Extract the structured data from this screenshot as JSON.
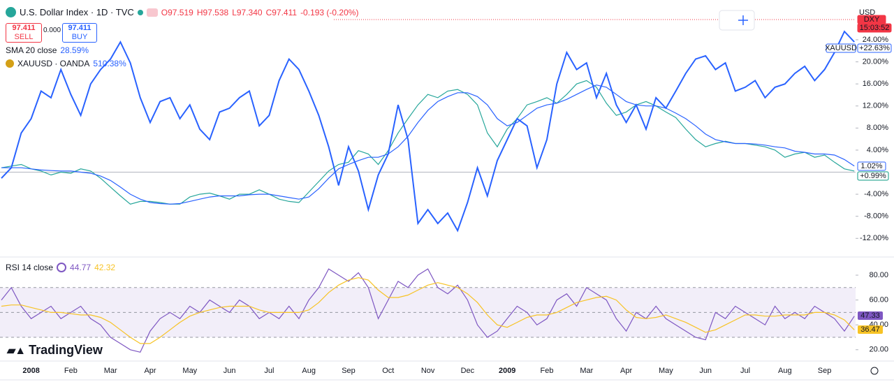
{
  "header": {
    "symbol_title": "U.S. Dollar Index · 1D · TVC",
    "ohlc": [
      "O97.519",
      "H97.538",
      "L97.340",
      "C97.411"
    ],
    "change": "-0.193 (-0.20%)",
    "sell_price": "97.411",
    "sell": "SELL",
    "spread": "0.000",
    "buy_price": "97.411",
    "buy": "BUY",
    "currency": "USD",
    "logo": "TradingView"
  },
  "chart_data": [
    {
      "type": "line",
      "title": "U.S. Dollar Index · 1D · TVC",
      "categories": [
        null,
        null,
        null,
        "2008",
        null,
        null,
        null,
        "Feb",
        null,
        null,
        null,
        "Mar",
        null,
        null,
        null,
        "Apr",
        null,
        null,
        null,
        "May",
        null,
        null,
        null,
        "Jun",
        null,
        null,
        null,
        "Jul",
        null,
        null,
        null,
        "Aug",
        null,
        null,
        null,
        "Sep",
        null,
        null,
        null,
        "Oct",
        null,
        null,
        null,
        "Nov",
        null,
        null,
        null,
        "Dec",
        null,
        null,
        null,
        "2009",
        null,
        null,
        null,
        "Feb",
        null,
        null,
        null,
        "Mar",
        null,
        null,
        null,
        "Apr",
        null,
        null,
        null,
        "May",
        null,
        null,
        null,
        "Jun",
        null,
        null,
        null,
        "Jul",
        null,
        null,
        null,
        "Aug",
        null,
        null,
        null,
        "Sep",
        null,
        null,
        null
      ],
      "series": [
        {
          "name": "DXY",
          "color": "#26a69a",
          "values": [
            0.8,
            1.1,
            1.4,
            0.6,
            0.2,
            -0.5,
            0.0,
            -0.2,
            0.6,
            0.2,
            -1.1,
            -2.7,
            -4.3,
            -5.8,
            -5.3,
            -5.3,
            -5.5,
            -5.8,
            -5.8,
            -4.5,
            -4.0,
            -3.8,
            -4.3,
            -4.9,
            -4.0,
            -4.0,
            -3.2,
            -4.0,
            -4.9,
            -5.3,
            -5.5,
            -3.6,
            -1.7,
            0.2,
            1.4,
            1.8,
            3.9,
            3.3,
            1.4,
            3.9,
            7.1,
            9.7,
            12.2,
            14.1,
            13.5,
            14.7,
            15.0,
            14.1,
            12.2,
            7.1,
            4.6,
            7.8,
            9.7,
            12.2,
            12.8,
            13.5,
            12.5,
            14.1,
            16.0,
            16.6,
            15.4,
            12.5,
            10.3,
            10.9,
            12.2,
            12.8,
            12.0,
            10.9,
            9.9,
            7.8,
            5.9,
            4.6,
            5.2,
            5.6,
            5.2,
            5.2,
            4.9,
            4.6,
            4.0,
            2.7,
            3.3,
            3.6,
            2.7,
            3.1,
            1.8,
            0.6,
            0.2
          ]
        },
        {
          "name": "XAUUSD · OANDA",
          "color": "#2962ff",
          "legend_value": "510.38%",
          "values": [
            -1.1,
            0.8,
            7.1,
            9.7,
            14.7,
            13.5,
            18.6,
            14.1,
            10.3,
            16.0,
            18.6,
            20.5,
            23.6,
            19.8,
            13.5,
            9.0,
            12.8,
            13.5,
            9.7,
            12.2,
            7.8,
            5.9,
            10.9,
            11.6,
            13.5,
            14.7,
            8.4,
            10.3,
            16.6,
            20.5,
            18.6,
            14.7,
            10.3,
            4.6,
            -2.4,
            4.6,
            0.2,
            -6.8,
            -0.5,
            3.3,
            12.2,
            5.9,
            -9.3,
            -6.8,
            -9.3,
            -7.4,
            -10.6,
            -5.5,
            0.8,
            -4.3,
            2.1,
            5.9,
            9.7,
            8.4,
            0.8,
            5.9,
            16.0,
            21.7,
            18.6,
            19.8,
            13.5,
            17.9,
            12.2,
            9.0,
            12.2,
            7.8,
            13.5,
            11.6,
            14.7,
            17.9,
            20.5,
            21.1,
            18.6,
            19.8,
            14.7,
            15.4,
            16.6,
            13.5,
            15.4,
            16.0,
            17.9,
            19.2,
            16.6,
            18.6,
            21.7,
            25.5,
            23.6
          ]
        },
        {
          "name": "SMA 20 close",
          "color": "#2962ff",
          "legend_value": "28.59%",
          "values": [
            0.8,
            0.8,
            0.8,
            0.6,
            0.4,
            0.3,
            0.2,
            0.2,
            0.0,
            -0.2,
            -0.7,
            -1.5,
            -2.7,
            -4.0,
            -4.9,
            -5.5,
            -5.7,
            -5.8,
            -5.7,
            -5.3,
            -4.9,
            -4.5,
            -4.3,
            -4.3,
            -4.3,
            -4.1,
            -4.0,
            -4.0,
            -4.3,
            -4.6,
            -4.9,
            -4.5,
            -3.0,
            -1.1,
            0.6,
            1.4,
            2.1,
            2.7,
            2.7,
            3.3,
            4.6,
            6.5,
            9.0,
            11.2,
            12.8,
            13.7,
            14.4,
            14.4,
            13.7,
            12.2,
            9.7,
            8.4,
            9.0,
            10.3,
            11.6,
            12.2,
            12.5,
            13.2,
            14.1,
            15.0,
            15.8,
            15.4,
            14.1,
            12.8,
            12.2,
            12.0,
            12.0,
            11.6,
            10.7,
            9.7,
            8.4,
            6.9,
            5.9,
            5.5,
            5.2,
            5.2,
            5.1,
            4.9,
            4.6,
            4.4,
            3.8,
            3.6,
            3.3,
            3.3,
            3.1,
            2.3,
            1.1
          ]
        }
      ],
      "ylim": [
        -15,
        30.2
      ],
      "yticks": [
        {
          "value": -12,
          "label": "-12.00%"
        },
        {
          "value": -8,
          "label": "-8.00%"
        },
        {
          "value": -4,
          "label": "-4.00%"
        },
        {
          "value": 4,
          "label": "4.00%"
        },
        {
          "value": 8,
          "label": "8.00%"
        },
        {
          "value": 12,
          "label": "12.00%"
        },
        {
          "value": 16,
          "label": "16.00%"
        },
        {
          "value": 20,
          "label": "20.00%"
        },
        {
          "value": 24,
          "label": "24.00%"
        }
      ],
      "baseline": 0,
      "grid": false,
      "tags": [
        "DXY",
        "15:03:52",
        "XAUUSD",
        "+22.63%",
        "1.02%",
        "+0.99%"
      ]
    },
    {
      "type": "line",
      "series": [
        {
          "name": "RSI 14 close",
          "color": "#7e57c2",
          "legend_value": "44.77",
          "values": [
            60,
            70,
            55,
            45,
            50,
            55,
            45,
            50,
            55,
            45,
            40,
            30,
            25,
            20,
            18,
            35,
            45,
            50,
            45,
            55,
            50,
            60,
            55,
            50,
            60,
            55,
            45,
            50,
            45,
            55,
            45,
            60,
            70,
            85,
            80,
            75,
            82,
            70,
            45,
            60,
            75,
            70,
            80,
            85,
            70,
            65,
            72,
            60,
            40,
            30,
            35,
            45,
            55,
            50,
            40,
            45,
            60,
            65,
            55,
            70,
            65,
            60,
            45,
            35,
            50,
            45,
            55,
            45,
            40,
            35,
            30,
            28,
            50,
            45,
            55,
            50,
            45,
            40,
            55,
            45,
            50,
            45,
            55,
            50,
            45,
            35,
            47
          ]
        },
        {
          "color": "#f7c325",
          "legend_value": "42.32",
          "values": [
            55,
            56,
            56,
            54,
            52,
            50,
            50,
            49,
            48,
            48,
            46,
            42,
            36,
            30,
            25,
            25,
            30,
            36,
            42,
            47,
            50,
            52,
            54,
            55,
            55,
            55,
            52,
            50,
            50,
            50,
            50,
            52,
            58,
            66,
            72,
            76,
            78,
            76,
            68,
            62,
            62,
            64,
            68,
            72,
            74,
            72,
            70,
            65,
            58,
            48,
            40,
            38,
            42,
            46,
            48,
            48,
            50,
            54,
            58,
            60,
            62,
            63,
            60,
            52,
            46,
            45,
            46,
            48,
            45,
            42,
            38,
            34,
            36,
            40,
            44,
            48,
            48,
            47,
            47,
            48,
            48,
            48,
            50,
            50,
            48,
            44,
            36
          ]
        }
      ],
      "ylim": [
        12,
        93.5
      ],
      "yticks": [
        {
          "value": 20,
          "label": "20.00"
        },
        {
          "value": 40,
          "label": "40.00"
        },
        {
          "value": 60,
          "label": "60.00"
        },
        {
          "value": 80,
          "label": "80.00"
        }
      ],
      "levels": [
        30,
        50,
        70
      ],
      "tags": [
        "47.33",
        "36.47"
      ]
    }
  ]
}
